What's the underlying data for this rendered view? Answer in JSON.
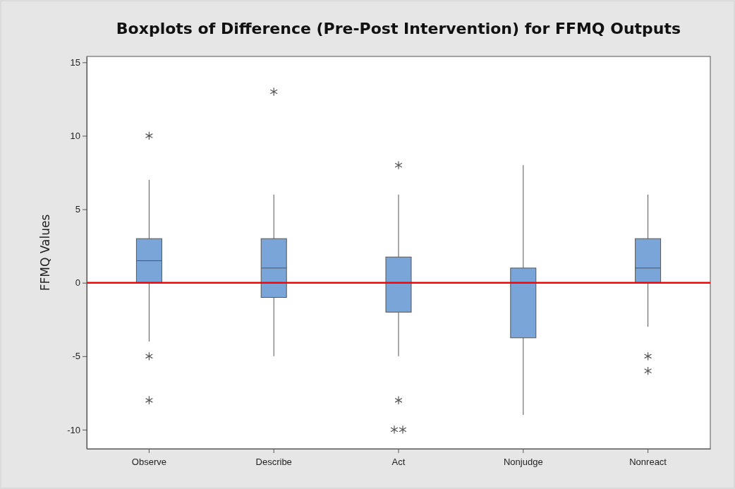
{
  "chart_data": {
    "type": "box",
    "title": "Boxplots of Difference (Pre-Post Intervention) for FFMQ Outputs",
    "ylabel": "FFMQ Values",
    "categories": [
      "Observe",
      "Describe",
      "Act",
      "Nonjudge",
      "Nonreact"
    ],
    "color": "#7aa5d8",
    "boxes": [
      {
        "low": -4,
        "q1": 0,
        "median": 1.5,
        "q3": 3,
        "high": 7,
        "outliers": [
          10,
          -5,
          -8
        ]
      },
      {
        "low": -5,
        "q1": -1,
        "median": 1,
        "q3": 3,
        "high": 6,
        "outliers": [
          13
        ]
      },
      {
        "low": -5,
        "q1": -2,
        "median": 0,
        "q3": 1.75,
        "high": 6,
        "outliers": [
          8,
          -8,
          -10,
          -10
        ]
      },
      {
        "low": -9,
        "q1": -3.75,
        "median": 0,
        "q3": 1,
        "high": 8
      },
      {
        "low": -3,
        "q1": 0,
        "median": 1,
        "q3": 3,
        "high": 6,
        "outliers": [
          -5,
          -6
        ]
      }
    ],
    "ylim": [
      -11.3,
      15.4
    ],
    "yticks": [
      -10,
      -5,
      0,
      5,
      10,
      15
    ],
    "ref_lines": [
      {
        "axis": "y",
        "value": 0,
        "color": "#ff0000"
      }
    ]
  }
}
